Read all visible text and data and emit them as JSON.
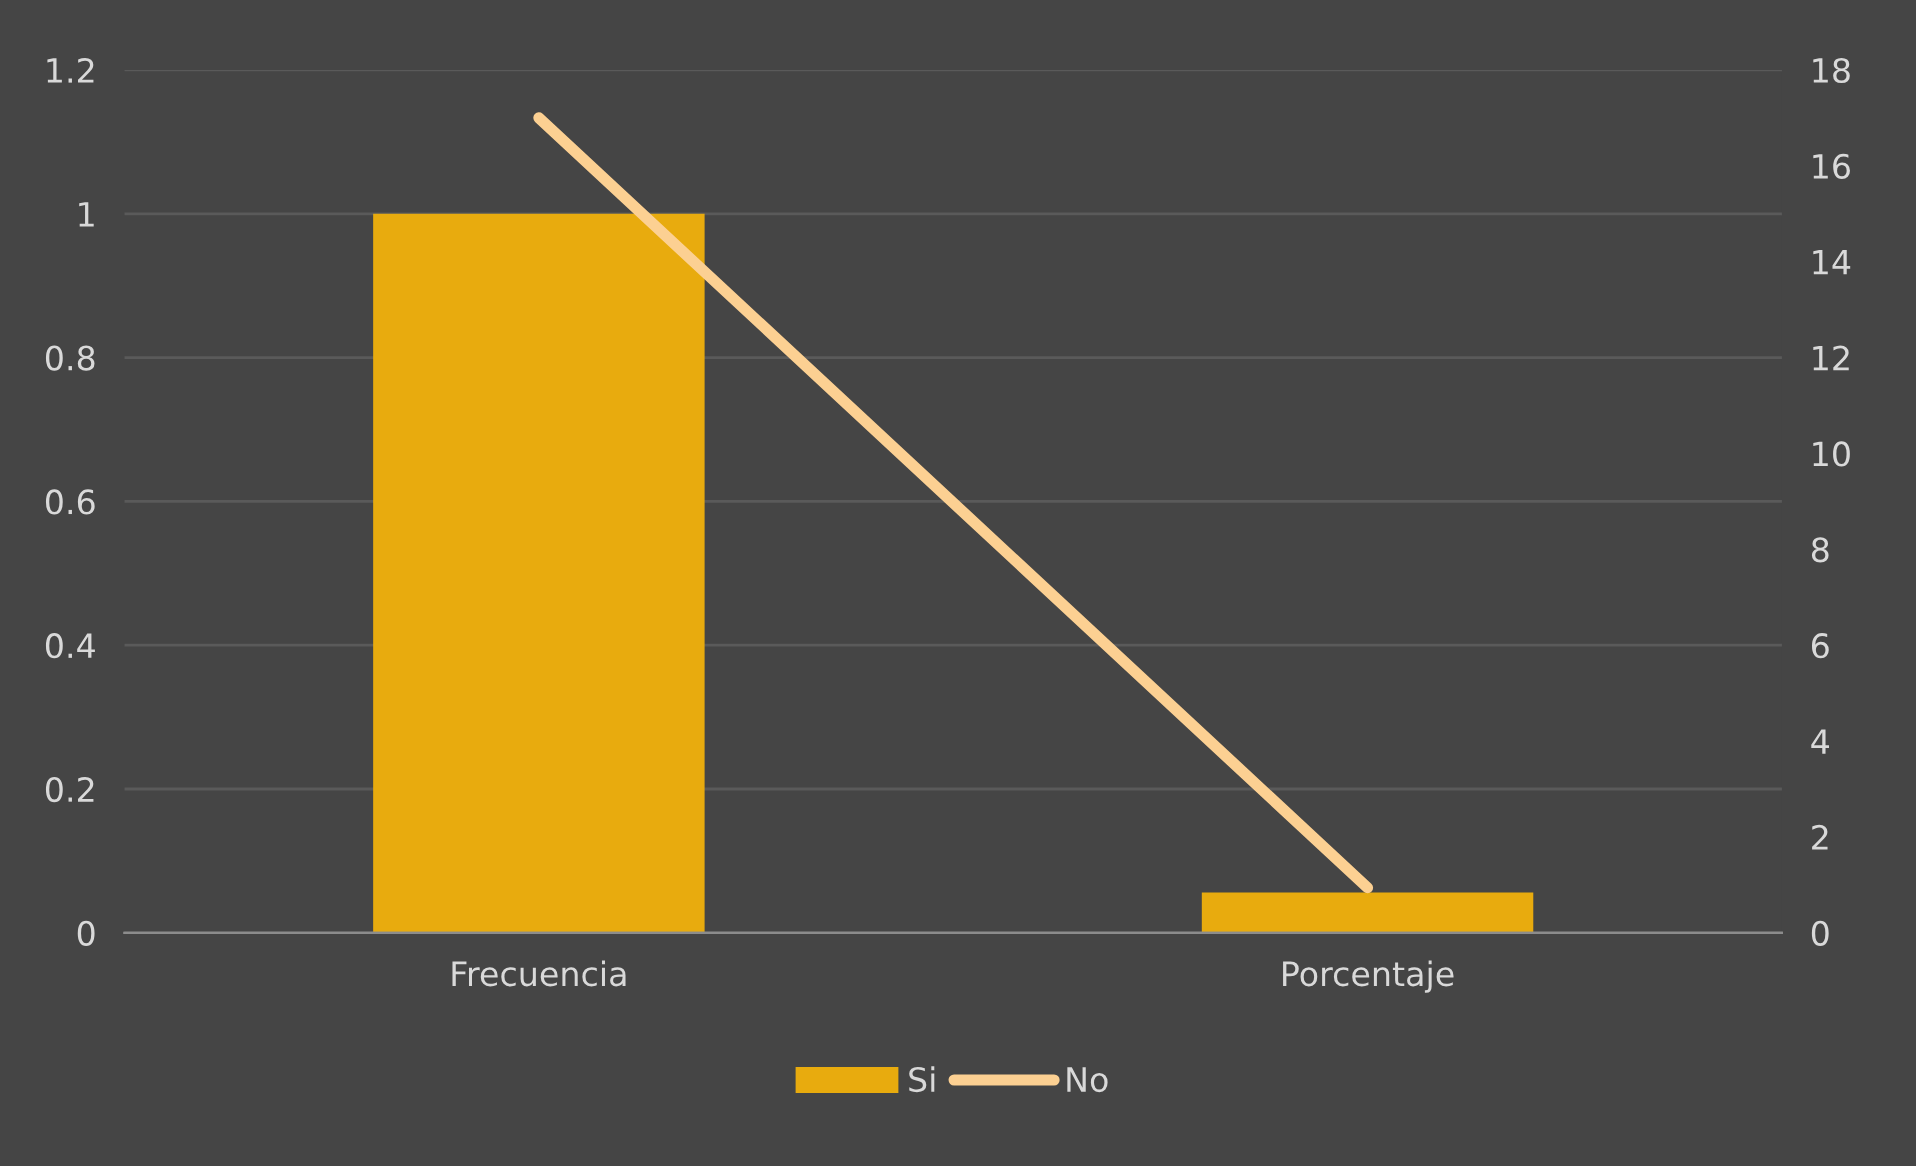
{
  "chart_data": {
    "type": "bar",
    "categories": [
      "Frecuencia",
      "Porcentaje"
    ],
    "series": [
      {
        "name": "Si",
        "color": "#e8ab0e",
        "values": [
          1,
          0.056
        ]
      },
      {
        "name": "No",
        "type": "line",
        "axis": "y2",
        "color": "#fcd092",
        "values": [
          17,
          0.94
        ]
      }
    ],
    "ylim": [
      0,
      1.2
    ],
    "yticks": [
      0,
      0.2,
      0.4,
      0.6,
      0.8,
      1,
      1.2
    ],
    "y2lim": [
      0,
      18
    ],
    "y2ticks": [
      0,
      2,
      4,
      6,
      8,
      10,
      12,
      14,
      16,
      18
    ],
    "grid": "y",
    "legend": "bottom",
    "marker": "none",
    "line_style": "solid"
  }
}
